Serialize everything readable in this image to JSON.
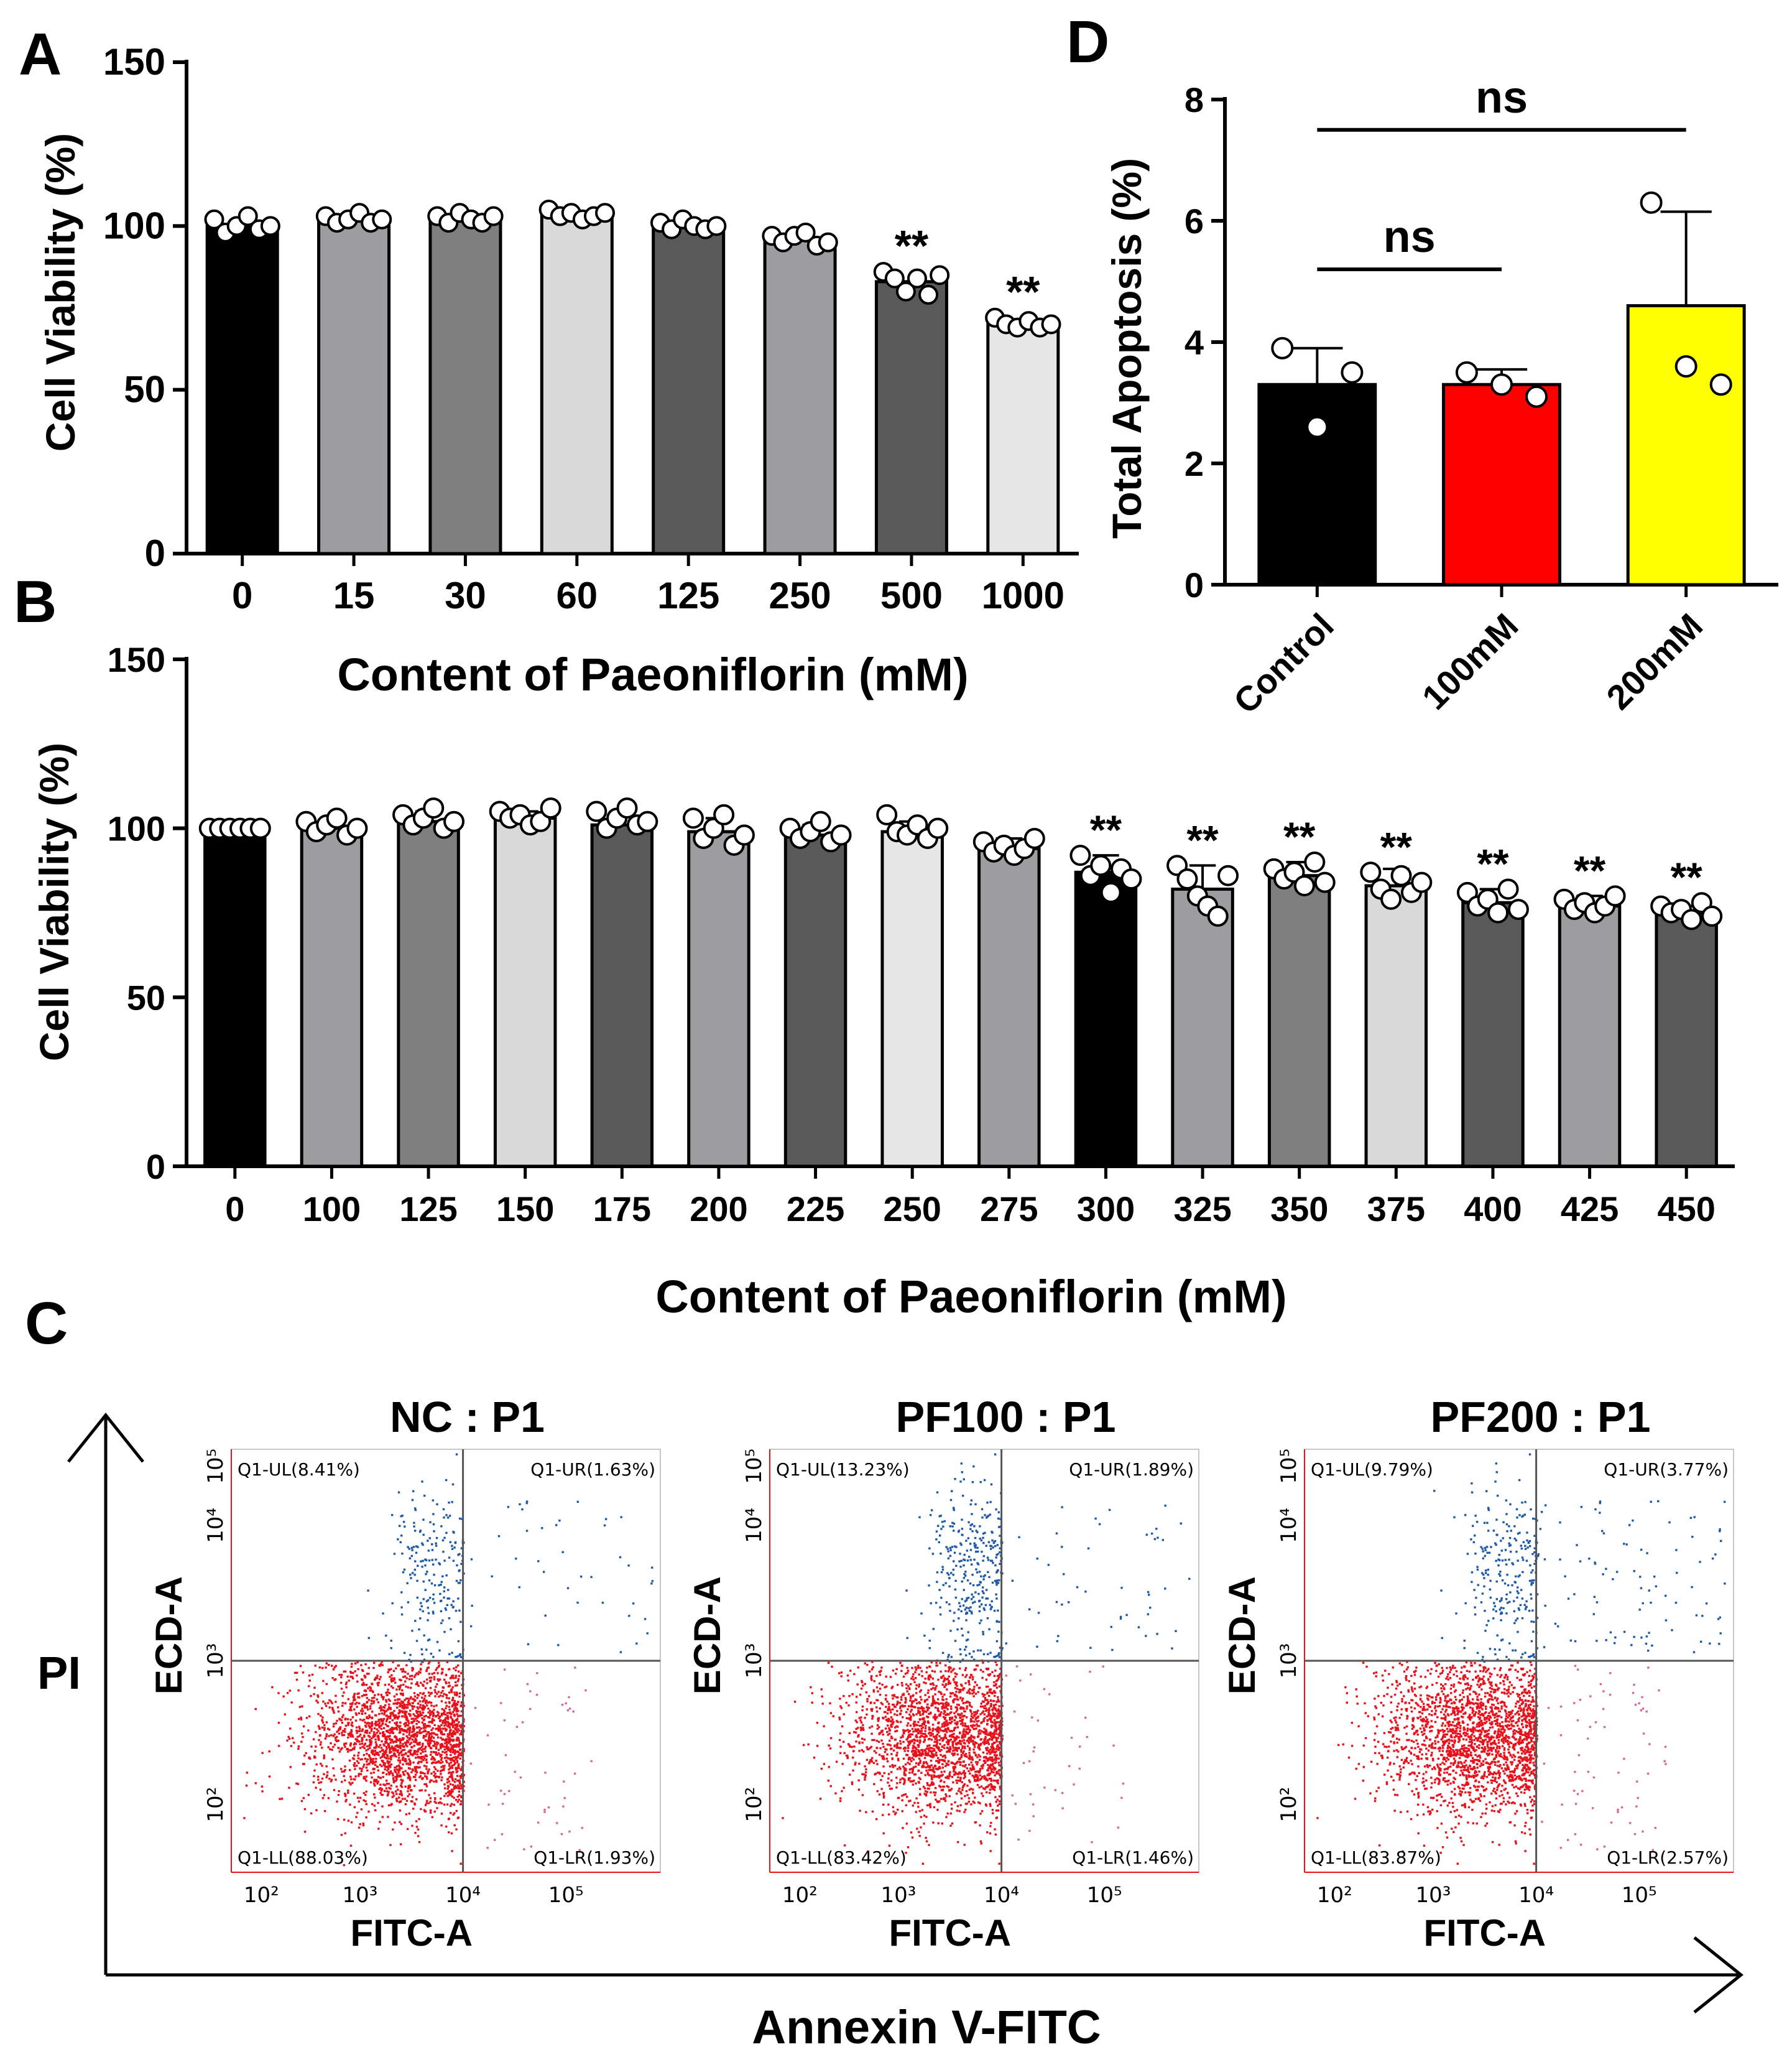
{
  "panel_letters": [
    "A",
    "B",
    "C",
    "D"
  ],
  "colors": {
    "black": "#000000",
    "dark_gray": "#595959",
    "mid_gray": "#7f7f7f",
    "light_gray": "#9d9c9e",
    "pale_gray": "#d9d9d9",
    "lightest_gray": "#e6e6e6",
    "red": "#ff0000",
    "yellow": "#ffff00",
    "flow_red": "#e8101a",
    "flow_blue": "#1e5aa8",
    "flow_pink": "#d9679a"
  },
  "chart_data": [
    {
      "id": "A",
      "type": "bar",
      "xlabel": "Content of Paeoniflorin (mM)",
      "ylabel": "Cell Viability (%)",
      "ylim": [
        0,
        150
      ],
      "yticks": [
        0,
        50,
        100,
        150
      ],
      "categories": [
        "0",
        "15",
        "30",
        "60",
        "125",
        "250",
        "500",
        "1000"
      ],
      "values": [
        100,
        102,
        102.5,
        103.5,
        100,
        96,
        83,
        70
      ],
      "bar_colors": [
        "black",
        "light_gray",
        "mid_gray",
        "pale_gray",
        "dark_gray",
        "light_gray",
        "dark_gray",
        "lightest_gray"
      ],
      "points": [
        [
          102,
          98,
          100,
          103,
          99,
          100
        ],
        [
          103,
          101,
          102,
          104,
          101,
          102
        ],
        [
          103,
          101,
          104,
          102,
          101,
          103
        ],
        [
          105,
          103,
          104,
          102,
          103,
          104
        ],
        [
          101,
          99,
          102,
          100,
          99,
          100
        ],
        [
          97,
          95,
          97,
          98,
          94,
          95
        ],
        [
          86,
          84,
          80,
          84,
          79,
          85
        ],
        [
          72,
          70,
          69,
          71,
          69,
          70
        ]
      ],
      "significance": [
        "",
        "",
        "",
        "",
        "",
        "",
        "**",
        "**"
      ]
    },
    {
      "id": "B",
      "type": "bar",
      "xlabel": "Content of Paeoniflorin (mM)",
      "ylabel": "Cell Viability (%)",
      "ylim": [
        0,
        150
      ],
      "yticks": [
        0,
        50,
        100,
        150
      ],
      "categories": [
        "0",
        "100",
        "125",
        "150",
        "175",
        "200",
        "225",
        "250",
        "275",
        "300",
        "325",
        "350",
        "375",
        "400",
        "425",
        "450"
      ],
      "values": [
        100,
        100,
        102,
        103,
        101,
        99,
        98,
        99,
        94,
        87,
        82,
        86,
        83,
        78,
        77,
        75
      ],
      "errors": [
        0.5,
        2,
        3,
        2,
        3,
        4,
        3,
        3,
        3,
        5,
        7,
        4,
        5,
        4,
        3,
        2
      ],
      "bar_colors": [
        "black",
        "light_gray",
        "mid_gray",
        "pale_gray",
        "dark_gray",
        "light_gray",
        "dark_gray",
        "lightest_gray",
        "light_gray",
        "black",
        "light_gray",
        "mid_gray",
        "pale_gray",
        "dark_gray",
        "light_gray",
        "dark_gray"
      ],
      "points": [
        [
          100,
          100,
          100,
          100,
          100,
          100
        ],
        [
          102,
          99,
          101,
          103,
          98,
          100
        ],
        [
          104,
          101,
          103,
          106,
          100,
          102
        ],
        [
          105,
          103,
          104,
          101,
          102,
          106
        ],
        [
          105,
          100,
          103,
          106,
          101,
          102
        ],
        [
          103,
          97,
          100,
          104,
          95,
          98
        ],
        [
          100,
          97,
          99,
          102,
          96,
          98
        ],
        [
          104,
          99,
          98,
          101,
          97,
          100
        ],
        [
          96,
          93,
          95,
          92,
          94,
          97
        ],
        [
          92,
          86,
          89,
          81,
          88,
          85
        ],
        [
          89,
          85,
          80,
          77,
          74,
          86
        ],
        [
          88,
          85,
          87,
          83,
          90,
          84
        ],
        [
          87,
          82,
          79,
          86,
          81,
          84
        ],
        [
          81,
          77,
          79,
          75,
          82,
          76
        ],
        [
          79,
          76,
          78,
          75,
          77,
          80
        ],
        [
          77,
          75,
          76,
          73,
          78,
          74
        ]
      ],
      "significance": [
        "",
        "",
        "",
        "",
        "",
        "",
        "",
        "",
        "",
        "**",
        "**",
        "**",
        "**",
        "**",
        "**",
        "**"
      ]
    },
    {
      "id": "D",
      "type": "bar",
      "xlabel": "",
      "ylabel": "Total Apoptosis (%)",
      "ylim": [
        0,
        8
      ],
      "yticks": [
        0,
        2,
        4,
        6,
        8
      ],
      "categories": [
        "Control",
        "100mM",
        "200mM"
      ],
      "values": [
        3.3,
        3.3,
        4.6
      ],
      "errors": [
        0.6,
        0.25,
        1.55
      ],
      "bar_colors": [
        "black",
        "red",
        "yellow"
      ],
      "points": [
        [
          3.9,
          2.6,
          3.5
        ],
        [
          3.5,
          3.3,
          3.1
        ],
        [
          6.3,
          3.6,
          3.3
        ]
      ],
      "comparisons": [
        {
          "from": 0,
          "to": 1,
          "label": "ns",
          "y": 5.2
        },
        {
          "from": 0,
          "to": 2,
          "label": "ns",
          "y": 7.5
        }
      ]
    }
  ],
  "flow_cytometry": {
    "x_axis_label": "Annexin V-FITC",
    "y_axis_label": "PI",
    "panels": [
      {
        "title": "NC : P1",
        "xlabel": "FITC-A",
        "ylabel": "ECD-A",
        "quadrants": {
          "UL": "Q1-UL(8.41%)",
          "UR": "Q1-UR(1.63%)",
          "LL": "Q1-LL(88.03%)",
          "LR": "Q1-LR(1.93%)"
        },
        "xticks": [
          "10²",
          "10³",
          "10⁴",
          "10⁵"
        ],
        "yticks": [
          "10²",
          "10³",
          "10⁴",
          "10⁵"
        ],
        "fractions": {
          "UL": 8.41,
          "UR": 1.63,
          "LL": 88.03,
          "LR": 1.93
        }
      },
      {
        "title": "PF100 : P1",
        "xlabel": "FITC-A",
        "ylabel": "ECD-A",
        "quadrants": {
          "UL": "Q1-UL(13.23%)",
          "UR": "Q1-UR(1.89%)",
          "LL": "Q1-LL(83.42%)",
          "LR": "Q1-LR(1.46%)"
        },
        "xticks": [
          "10²",
          "10³",
          "10⁴",
          "10⁵"
        ],
        "yticks": [
          "10²",
          "10³",
          "10⁴",
          "10⁵"
        ],
        "fractions": {
          "UL": 13.23,
          "UR": 1.89,
          "LL": 83.42,
          "LR": 1.46
        }
      },
      {
        "title": "PF200 : P1",
        "xlabel": "FITC-A",
        "ylabel": "ECD-A",
        "quadrants": {
          "UL": "Q1-UL(9.79%)",
          "UR": "Q1-UR(3.77%)",
          "LL": "Q1-LL(83.87%)",
          "LR": "Q1-LR(2.57%)"
        },
        "xticks": [
          "10²",
          "10³",
          "10⁴",
          "10⁵"
        ],
        "yticks": [
          "10²",
          "10³",
          "10⁴",
          "10⁵"
        ],
        "fractions": {
          "UL": 9.79,
          "UR": 3.77,
          "LL": 83.87,
          "LR": 2.57
        }
      }
    ]
  }
}
